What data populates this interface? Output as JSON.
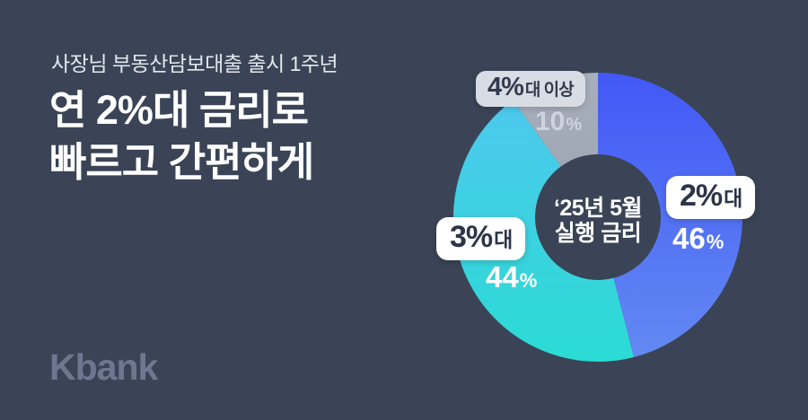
{
  "page": {
    "background": "#3a4456"
  },
  "header": {
    "eyebrow": "사장님 부동산담보대출 출시 1주년",
    "title_line1": "연 2%대 금리로",
    "title_line2": "빠르고 간편하게"
  },
  "logo": {
    "text": "Kbank",
    "color": "#6d7890"
  },
  "chart_data": {
    "type": "pie",
    "variant": "donut",
    "title": "‘25년 5월 실행 금리",
    "center_label": [
      "‘25년 5월",
      "실행 금리"
    ],
    "start_angle_deg": 0,
    "direction": "clockwise",
    "unit": "%",
    "categories": [
      "2%대",
      "3%대",
      "4%대 이상"
    ],
    "values": [
      46,
      44,
      10
    ],
    "segments": [
      {
        "name": "2%대",
        "pill_main": "2%",
        "pill_suffix": "대",
        "value": "46",
        "unit": "%",
        "gradient": [
          "#4157f7",
          "#648bf2"
        ]
      },
      {
        "name": "3%대",
        "pill_main": "3%",
        "pill_suffix": "대",
        "value": "44",
        "unit": "%",
        "gradient": [
          "#52c6f1",
          "#29dcd3"
        ]
      },
      {
        "name": "4%대 이상",
        "pill_main": "4%",
        "pill_suffix": "대 이상",
        "value": "10",
        "unit": "%",
        "gradient": [
          "#a9b0bd",
          "#8f97a5"
        ]
      }
    ],
    "geometry": {
      "outer_radius": 161,
      "inner_radius": 70
    }
  }
}
